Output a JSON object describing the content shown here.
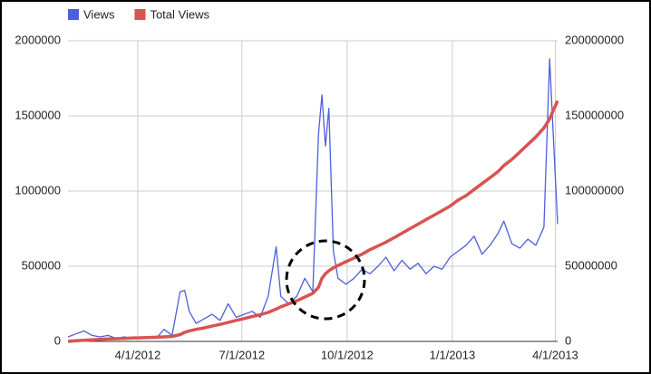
{
  "chart_data": {
    "type": "line",
    "x": [
      "2012-01-31",
      "2012-02-07",
      "2012-02-14",
      "2012-02-21",
      "2012-02-28",
      "2012-03-06",
      "2012-03-13",
      "2012-03-20",
      "2012-03-27",
      "2012-04-03",
      "2012-04-10",
      "2012-04-17",
      "2012-04-24",
      "2012-05-01",
      "2012-05-08",
      "2012-05-12",
      "2012-05-16",
      "2012-05-22",
      "2012-05-29",
      "2012-06-05",
      "2012-06-12",
      "2012-06-19",
      "2012-06-26",
      "2012-07-03",
      "2012-07-10",
      "2012-07-17",
      "2012-07-24",
      "2012-07-31",
      "2012-08-04",
      "2012-08-11",
      "2012-08-18",
      "2012-08-25",
      "2012-09-01",
      "2012-09-06",
      "2012-09-09",
      "2012-09-12",
      "2012-09-15",
      "2012-09-19",
      "2012-09-23",
      "2012-09-30",
      "2012-10-07",
      "2012-10-14",
      "2012-10-21",
      "2012-10-28",
      "2012-11-04",
      "2012-11-11",
      "2012-11-18",
      "2012-11-25",
      "2012-12-02",
      "2012-12-09",
      "2012-12-16",
      "2012-12-23",
      "2012-12-30",
      "2013-01-06",
      "2013-01-13",
      "2013-01-20",
      "2013-01-27",
      "2013-02-03",
      "2013-02-10",
      "2013-02-15",
      "2013-02-22",
      "2013-03-01",
      "2013-03-08",
      "2013-03-15",
      "2013-03-22",
      "2013-03-27",
      "2013-03-31",
      "2013-04-03"
    ],
    "series": [
      {
        "name": "Views",
        "color": "#4d5fdc",
        "values": [
          30000,
          50000,
          70000,
          40000,
          30000,
          40000,
          20000,
          30000,
          20000,
          25000,
          30000,
          20000,
          80000,
          40000,
          330000,
          340000,
          200000,
          120000,
          150000,
          180000,
          140000,
          250000,
          160000,
          180000,
          200000,
          160000,
          300000,
          630000,
          300000,
          250000,
          300000,
          420000,
          330000,
          1380000,
          1640000,
          1300000,
          1550000,
          600000,
          420000,
          380000,
          420000,
          480000,
          450000,
          500000,
          560000,
          470000,
          540000,
          480000,
          520000,
          450000,
          500000,
          480000,
          560000,
          600000,
          640000,
          700000,
          580000,
          640000,
          720000,
          800000,
          650000,
          620000,
          680000,
          640000,
          760000,
          1880000,
          1250000,
          780000
        ]
      },
      {
        "name": "Total Views",
        "color": "#d9534f",
        "axis": "y2",
        "values": [
          0,
          400000,
          800000,
          1100000,
          1400000,
          1600000,
          1800000,
          2000000,
          2200000,
          2400000,
          2600000,
          2800000,
          3000000,
          3300000,
          4500000,
          6000000,
          7000000,
          8000000,
          9000000,
          10200000,
          11300000,
          12600000,
          14000000,
          15200000,
          16500000,
          17800000,
          19300000,
          21500000,
          23000000,
          25000000,
          27000000,
          29500000,
          32000000,
          36000000,
          42000000,
          45000000,
          47000000,
          49000000,
          50500000,
          53000000,
          55500000,
          58000000,
          61000000,
          63500000,
          66000000,
          69000000,
          72000000,
          75000000,
          78000000,
          81000000,
          84000000,
          87000000,
          90000000,
          94000000,
          97000000,
          101000000,
          105000000,
          109000000,
          113000000,
          117000000,
          121000000,
          126000000,
          131000000,
          136000000,
          142000000,
          148000000,
          155000000,
          160000000
        ]
      }
    ],
    "xlim": [
      "2012-01-31",
      "2013-04-03"
    ],
    "xticks": [
      {
        "value": "2012-04-01",
        "label": "4/1/2012"
      },
      {
        "value": "2012-07-01",
        "label": "7/1/2012"
      },
      {
        "value": "2012-10-01",
        "label": "10/1/2012"
      },
      {
        "value": "2013-01-01",
        "label": "1/1/2013"
      },
      {
        "value": "2013-04-01",
        "label": "4/1/2013"
      }
    ],
    "ylim": [
      0,
      2000000
    ],
    "yticks": [
      0,
      500000,
      1000000,
      1500000,
      2000000
    ],
    "y2lim": [
      0,
      200000000
    ],
    "y2ticks": [
      0,
      50000000,
      100000000,
      150000000,
      200000000
    ],
    "grid": true,
    "legend": "top-left"
  }
}
